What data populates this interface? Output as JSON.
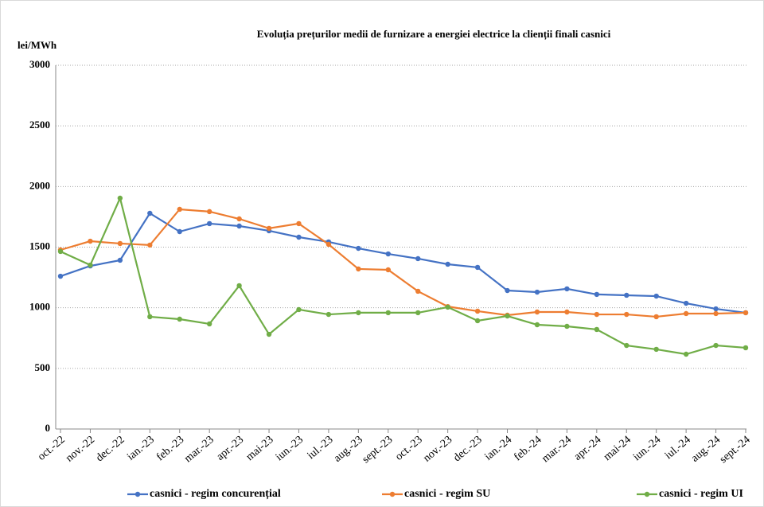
{
  "chart_data": {
    "type": "line",
    "title": "Evoluția prețurilor medii de furnizare a energiei electrice la clienții finali casnici",
    "y_label": "lei/MWh",
    "categories": [
      "oct.-22",
      "nov.-22",
      "dec.-22",
      "ian.-23",
      "feb.-23",
      "mar.-23",
      "apr.-23",
      "mai-23",
      "iun.-23",
      "iul.-23",
      "aug.-23",
      "sept.-23",
      "oct.-23",
      "nov.-23",
      "dec.-23",
      "ian.-24",
      "feb.-24",
      "mar.-24",
      "apr.-24",
      "mai-24",
      "iun.-24",
      "iul.-24",
      "aug.-24",
      "sept.-24"
    ],
    "series": [
      {
        "name": "casnici - regim concurențial",
        "color": "#4472c4",
        "values": [
          1260,
          1345,
          1392,
          1779,
          1628,
          1694,
          1674,
          1635,
          1582,
          1543,
          1490,
          1444,
          1405,
          1359,
          1333,
          1142,
          1129,
          1156,
          1110,
          1103,
          1096,
          1037,
          991,
          959
        ]
      },
      {
        "name": "casnici - regim SU",
        "color": "#ed7d31",
        "values": [
          1477,
          1549,
          1530,
          1517,
          1812,
          1793,
          1733,
          1655,
          1694,
          1523,
          1320,
          1313,
          1136,
          1010,
          972,
          939,
          965,
          965,
          945,
          945,
          926,
          952,
          952,
          959
        ]
      },
      {
        "name": "casnici - regim UI",
        "color": "#70ad47",
        "values": [
          1464,
          1352,
          1904,
          926,
          906,
          867,
          1182,
          781,
          985,
          945,
          959,
          959,
          959,
          1005,
          893,
          932,
          860,
          847,
          821,
          689,
          657,
          617,
          689,
          670
        ]
      }
    ],
    "ylim": [
      0,
      3000
    ],
    "yticks": [
      0,
      500,
      1000,
      1500,
      2000,
      2500,
      3000
    ],
    "grid": true
  }
}
